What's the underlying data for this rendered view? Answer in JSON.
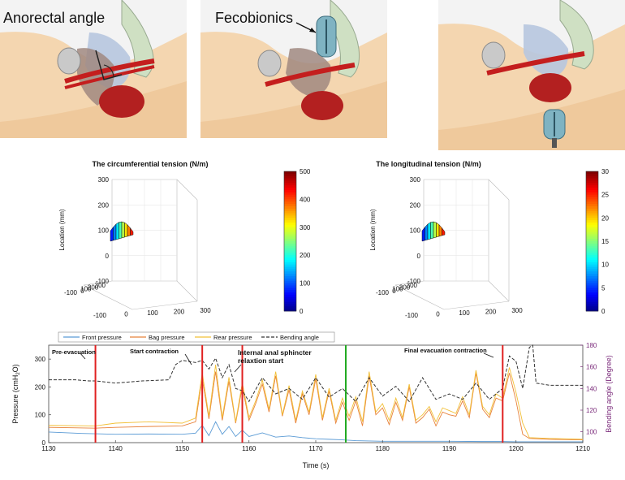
{
  "anatomy": {
    "panel1_label": "Anorectal angle",
    "panel2_label": "Fecobionics"
  },
  "chart_data": [
    {
      "type": "3d-surface",
      "title": "The circumferential tension (N/m)",
      "zlabel": "Location (mm)",
      "z_ticks": [
        "300",
        "200",
        "100",
        "0",
        "-100"
      ],
      "y_ticks": [
        "300",
        "200",
        "100",
        "0",
        "-100"
      ],
      "x_ticks": [
        "-100",
        "0",
        "100",
        "200",
        "300"
      ],
      "colorbar": {
        "range": [
          0,
          500
        ],
        "ticks": [
          "500",
          "400",
          "300",
          "200",
          "100",
          "0"
        ]
      }
    },
    {
      "type": "3d-surface",
      "title": "The longitudinal tension (N/m)",
      "zlabel": "Location (mm)",
      "z_ticks": [
        "300",
        "200",
        "100",
        "0",
        "-100"
      ],
      "y_ticks": [
        "300",
        "200",
        "100",
        "0",
        "-100"
      ],
      "x_ticks": [
        "-100",
        "0",
        "100",
        "200",
        "300"
      ],
      "colorbar": {
        "range": [
          0,
          30
        ],
        "ticks": [
          "30",
          "25",
          "20",
          "15",
          "10",
          "5",
          "0"
        ]
      }
    },
    {
      "type": "line",
      "xlabel": "Time (s)",
      "ylabel_main": "Pressure (cmH",
      "ylabel_sub": "2",
      "ylabel_end": "O)",
      "y2label": "Bending angle (Degree)",
      "xlim": [
        1130,
        1210
      ],
      "ylim": [
        0,
        350
      ],
      "y2lim": [
        90,
        180
      ],
      "x_ticks": [
        "1130",
        "1140",
        "1150",
        "1160",
        "1170",
        "1180",
        "1190",
        "1200",
        "1210"
      ],
      "y_ticks": [
        "0",
        "100",
        "200",
        "300"
      ],
      "y2_ticks": [
        "100",
        "120",
        "140",
        "160",
        "180"
      ],
      "legend": [
        "Front pressure",
        "Bag pressure",
        "Rear pressure",
        "Bending angle"
      ],
      "colors": {
        "front": "#5b9bd5",
        "bag": "#e8823a",
        "rear": "#f2c037",
        "angle": "#333333",
        "marker_red": "#e02020",
        "marker_green": "#22aa22",
        "right_axis": "#7a2a7a"
      },
      "markers": [
        {
          "x": 1137,
          "color": "red"
        },
        {
          "x": 1153,
          "color": "red"
        },
        {
          "x": 1159,
          "color": "red"
        },
        {
          "x": 1174.5,
          "color": "green"
        },
        {
          "x": 1198,
          "color": "red"
        }
      ],
      "annotations": [
        {
          "text": "Pre-evacuation",
          "x": 1137
        },
        {
          "text": "Start contraction",
          "x": 1153
        },
        {
          "text": "Internal anal sphincter",
          "x": 1159
        },
        {
          "text": "relaxtion start",
          "x": 1159
        },
        {
          "text": "Final evacuation contraction",
          "x": 1198
        }
      ],
      "series": [
        {
          "key": "front",
          "x": [
            1130,
            1135,
            1140,
            1145,
            1150,
            1152,
            1153,
            1154,
            1155,
            1156,
            1157,
            1158,
            1159,
            1160,
            1162,
            1164,
            1166,
            1168,
            1170,
            1172,
            1174,
            1176,
            1180,
            1185,
            1190,
            1195,
            1198,
            1200,
            1202,
            1205,
            1210
          ],
          "y": [
            38,
            33,
            30,
            31,
            30,
            34,
            62,
            25,
            75,
            30,
            58,
            22,
            45,
            22,
            35,
            20,
            24,
            18,
            14,
            12,
            10,
            7,
            5,
            5,
            5,
            4,
            4,
            3,
            3,
            3,
            3
          ]
        },
        {
          "key": "bag",
          "x": [
            1130,
            1137,
            1140,
            1145,
            1150,
            1152,
            1153,
            1154,
            1155,
            1156,
            1157,
            1158,
            1159,
            1160,
            1161,
            1162,
            1163,
            1164,
            1165,
            1166,
            1167,
            1168,
            1169,
            1170,
            1171,
            1172,
            1173,
            1174,
            1175,
            1176,
            1177,
            1178,
            1179,
            1180,
            1181,
            1182,
            1183,
            1184,
            1185,
            1186,
            1187,
            1188,
            1189,
            1190,
            1191,
            1192,
            1193,
            1194,
            1195,
            1196,
            1197,
            1198,
            1199,
            1200,
            1201,
            1202,
            1205,
            1210
          ],
          "y": [
            55,
            52,
            55,
            58,
            60,
            75,
            230,
            85,
            255,
            80,
            220,
            70,
            200,
            80,
            140,
            210,
            110,
            240,
            95,
            190,
            70,
            175,
            100,
            230,
            80,
            185,
            70,
            145,
            80,
            150,
            60,
            240,
            100,
            125,
            65,
            145,
            80,
            200,
            70,
            90,
            120,
            60,
            110,
            100,
            95,
            150,
            90,
            250,
            120,
            90,
            160,
            150,
            250,
            150,
            30,
            15,
            12,
            10
          ]
        },
        {
          "key": "rear",
          "x": [
            1130,
            1137,
            1140,
            1145,
            1150,
            1152,
            1153,
            1154,
            1155,
            1156,
            1157,
            1158,
            1159,
            1160,
            1161,
            1162,
            1163,
            1164,
            1165,
            1166,
            1167,
            1168,
            1169,
            1170,
            1171,
            1172,
            1173,
            1174,
            1175,
            1176,
            1177,
            1178,
            1179,
            1180,
            1181,
            1182,
            1183,
            1184,
            1185,
            1186,
            1187,
            1188,
            1189,
            1190,
            1191,
            1192,
            1193,
            1194,
            1195,
            1196,
            1197,
            1198,
            1199,
            1200,
            1201,
            1202,
            1205,
            1210
          ],
          "y": [
            62,
            60,
            70,
            75,
            70,
            88,
            250,
            95,
            280,
            90,
            235,
            75,
            215,
            90,
            150,
            225,
            120,
            255,
            100,
            205,
            80,
            185,
            110,
            245,
            90,
            195,
            80,
            160,
            95,
            165,
            75,
            255,
            110,
            140,
            80,
            160,
            90,
            210,
            80,
            100,
            130,
            75,
            125,
            115,
            105,
            165,
            100,
            260,
            130,
            100,
            175,
            160,
            270,
            180,
            70,
            18,
            15,
            12
          ]
        },
        {
          "key": "angle",
          "x": [
            1130,
            1134,
            1136,
            1137,
            1140,
            1144,
            1148,
            1149,
            1150,
            1152,
            1153,
            1154,
            1155,
            1156,
            1157,
            1158,
            1159,
            1160,
            1162,
            1164,
            1166,
            1168,
            1170,
            1172,
            1174,
            1176,
            1178,
            1180,
            1182,
            1184,
            1186,
            1188,
            1190,
            1192,
            1194,
            1196,
            1198,
            1199,
            1200,
            1201,
            1202,
            1202.5,
            1203,
            1205,
            1210
          ],
          "y": [
            148,
            148,
            147,
            147,
            145,
            147,
            148,
            162,
            166,
            164,
            166,
            158,
            168,
            150,
            162,
            140,
            138,
            128,
            150,
            135,
            140,
            130,
            150,
            132,
            140,
            128,
            150,
            133,
            142,
            128,
            150,
            130,
            135,
            130,
            145,
            130,
            140,
            170,
            165,
            140,
            178,
            180,
            145,
            143,
            143
          ]
        }
      ]
    }
  ]
}
